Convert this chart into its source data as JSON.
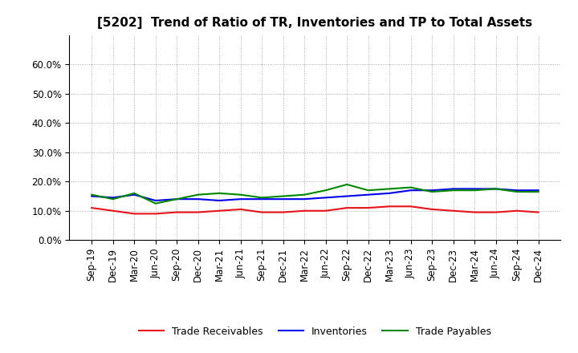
{
  "title": "[5202]  Trend of Ratio of TR, Inventories and TP to Total Assets",
  "x_labels": [
    "Sep-19",
    "Dec-19",
    "Mar-20",
    "Jun-20",
    "Sep-20",
    "Dec-20",
    "Mar-21",
    "Jun-21",
    "Sep-21",
    "Dec-21",
    "Mar-22",
    "Jun-22",
    "Sep-22",
    "Dec-22",
    "Mar-23",
    "Jun-23",
    "Sep-23",
    "Dec-23",
    "Mar-24",
    "Jun-24",
    "Sep-24",
    "Dec-24"
  ],
  "trade_receivables": [
    11.0,
    10.0,
    9.0,
    9.0,
    9.5,
    9.5,
    10.0,
    10.5,
    9.5,
    9.5,
    10.0,
    10.0,
    11.0,
    11.0,
    11.5,
    11.5,
    10.5,
    10.0,
    9.5,
    9.5,
    10.0,
    9.5
  ],
  "inventories": [
    15.0,
    14.5,
    15.5,
    13.5,
    14.0,
    14.0,
    13.5,
    14.0,
    14.0,
    14.0,
    14.0,
    14.5,
    15.0,
    15.5,
    16.0,
    17.0,
    17.0,
    17.5,
    17.5,
    17.5,
    17.0,
    17.0
  ],
  "trade_payables": [
    15.5,
    14.0,
    16.0,
    12.5,
    14.0,
    15.5,
    16.0,
    15.5,
    14.5,
    15.0,
    15.5,
    17.0,
    19.0,
    17.0,
    17.5,
    18.0,
    16.5,
    17.0,
    17.0,
    17.5,
    16.5,
    16.5
  ],
  "ylim": [
    0,
    70
  ],
  "yticks": [
    0,
    10,
    20,
    30,
    40,
    50,
    60
  ],
  "ytick_labels": [
    "0.0%",
    "10.0%",
    "20.0%",
    "30.0%",
    "40.0%",
    "50.0%",
    "60.0%"
  ],
  "line_color_tr": "#e81218",
  "line_color_inv": "#0000ee",
  "line_color_tp": "#008800",
  "legend_tr": "Trade Receivables",
  "legend_inv": "Inventories",
  "legend_tp": "Trade Payables",
  "background_color": "#ffffff",
  "grid_color": "#999999",
  "title_fontsize": 11,
  "tick_fontsize": 8.5,
  "legend_fontsize": 9
}
